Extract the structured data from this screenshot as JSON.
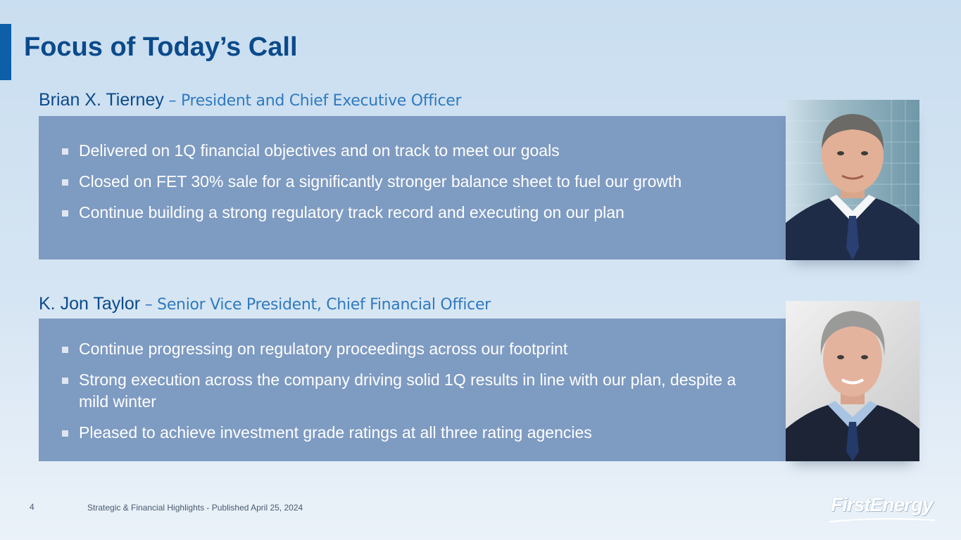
{
  "slide": {
    "title": "Focus of Today’s Call",
    "page_number": "4",
    "footer": "Strategic & Financial Highlights - Published April 25, 2024",
    "logo_text": "FirstEnergy"
  },
  "speakers": [
    {
      "name": "Brian X. Tierney",
      "role": " – President and Chief Executive Officer",
      "bullets": [
        "Delivered on 1Q financial objectives and on track to meet our goals",
        "Closed on FET 30% sale for a significantly stronger balance sheet to fuel our growth",
        "Continue building a strong regulatory track record and executing on our plan"
      ]
    },
    {
      "name": "K. Jon Taylor",
      "role": " – Senior Vice President, Chief Financial Officer",
      "bullets": [
        "Continue progressing on regulatory proceedings across our footprint",
        "Strong execution across the company driving solid 1Q results in line with our plan, despite a mild winter",
        "Pleased to achieve investment grade ratings at all three rating agencies"
      ]
    }
  ],
  "colors": {
    "accent": "#0d5fa8",
    "title": "#0b4a8b",
    "role": "#2f7ac0",
    "panel": "#7e9bc2"
  },
  "icons": {
    "bullet": "square-bullet-icon"
  }
}
